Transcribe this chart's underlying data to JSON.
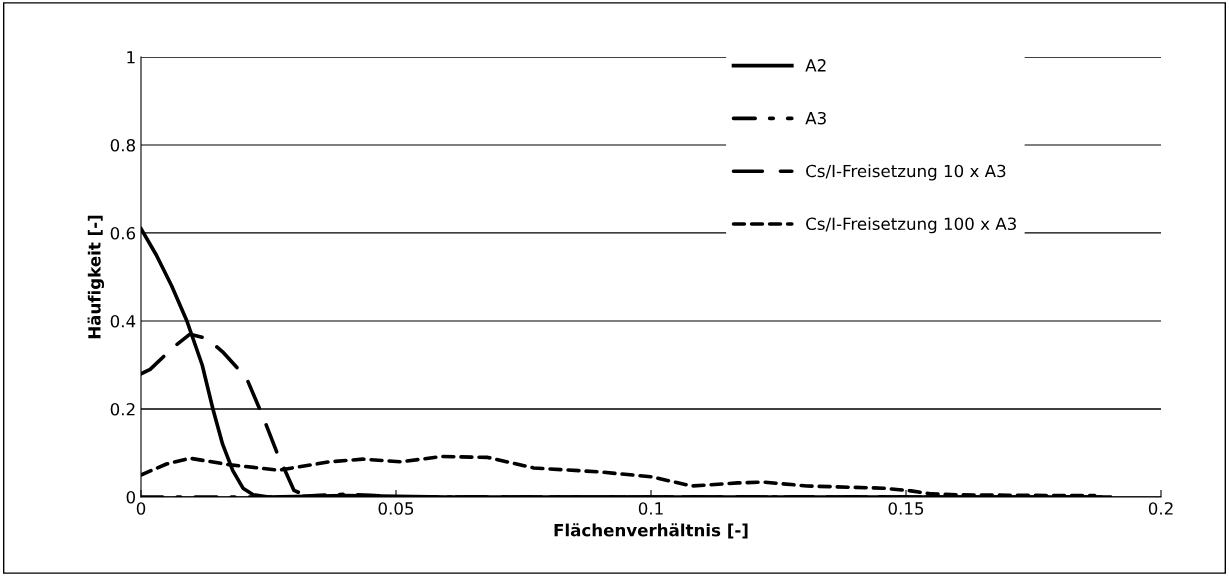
{
  "chart_data": {
    "type": "line",
    "xlabel": "Flächenverhältnis [-]",
    "ylabel": "Häufigkeit [-]",
    "xlim": [
      0,
      0.2
    ],
    "xticks": [
      0,
      0.05,
      0.1,
      0.15,
      0.2
    ],
    "ylim": [
      0,
      1
    ],
    "yticks": [
      0,
      0.2,
      0.4,
      0.6,
      0.8,
      1
    ],
    "grid": "y",
    "legend": "top",
    "marker": "none",
    "series": [
      {
        "name": "A2",
        "color": "#000000",
        "line_style": "solid",
        "x": [
          0,
          0.003,
          0.006,
          0.009,
          0.012,
          0.0141,
          0.016,
          0.018,
          0.02,
          0.022,
          0.025,
          0.04,
          0.06,
          0.1,
          0.15,
          0.19
        ],
        "values": [
          0.61,
          0.55,
          0.48,
          0.4,
          0.3,
          0.2,
          0.12,
          0.06,
          0.02,
          0.005,
          0,
          0.003,
          0,
          0,
          0,
          0
        ]
      },
      {
        "name": "A3",
        "color": "#000000",
        "line_style": "dashdot",
        "x": [
          0,
          0.03,
          0.035,
          0.04,
          0.045,
          0.05,
          0.1,
          0.19
        ],
        "values": [
          0,
          0,
          0.004,
          0.006,
          0.004,
          0,
          0,
          0
        ]
      },
      {
        "name": "Cs/I-Freisetzung 10 x A3",
        "color": "#000000",
        "line_style": "dashed",
        "x": [
          0,
          0.0018,
          0.0063,
          0.0096,
          0.013,
          0.016,
          0.0207,
          0.024,
          0.0267,
          0.03,
          0.033,
          0.05,
          0.1,
          0.19
        ],
        "values": [
          0.28,
          0.29,
          0.34,
          0.37,
          0.36,
          0.33,
          0.27,
          0.18,
          0.1,
          0.015,
          0,
          0,
          0,
          0
        ]
      },
      {
        "name": "Cs/I-Freisetzung 100 x A3",
        "color": "#000000",
        "line_style": "dotted",
        "x": [
          0,
          0.005,
          0.0096,
          0.0175,
          0.027,
          0.037,
          0.0435,
          0.051,
          0.059,
          0.068,
          0.077,
          0.09,
          0.1,
          0.108,
          0.117,
          0.122,
          0.1306,
          0.1455,
          0.151,
          0.155,
          0.16,
          0.17,
          0.187
        ],
        "values": [
          0.05,
          0.075,
          0.088,
          0.073,
          0.061,
          0.08,
          0.086,
          0.08,
          0.092,
          0.09,
          0.066,
          0.057,
          0.046,
          0.025,
          0.032,
          0.034,
          0.025,
          0.02,
          0.014,
          0.007,
          0.005,
          0.004,
          0.003
        ]
      }
    ]
  }
}
